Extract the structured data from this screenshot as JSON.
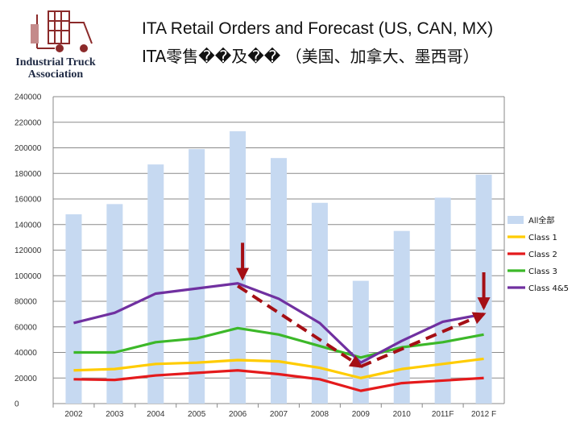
{
  "header": {
    "title": "ITA Retail Orders and Forecast (US, CAN, MX)",
    "subtitle": "ITA零售��及�� （美国、加拿大、墨西哥）",
    "logo_line1": "Industrial Truck",
    "logo_line2": "Association"
  },
  "chart_data": {
    "type": "bar",
    "categories": [
      "2002",
      "2003",
      "2004",
      "2005",
      "2006",
      "2007",
      "2008",
      "2009",
      "2010",
      "2011F",
      "2012 F"
    ],
    "ylim": [
      0,
      240000
    ],
    "yticks": [
      "0",
      "20000",
      "40000",
      "60000",
      "80000",
      "100000",
      "120000",
      "140000",
      "160000",
      "180000",
      "200000",
      "220000",
      "240000"
    ],
    "grid": true,
    "legend_position": "right",
    "series": [
      {
        "name": "All全部",
        "type": "bar",
        "color": "#c6d9f1",
        "values": [
          148000,
          156000,
          187000,
          199000,
          213000,
          192000,
          157000,
          96000,
          135000,
          161000,
          179000
        ]
      },
      {
        "name": "Class 1",
        "type": "line",
        "color": "#ffcc00",
        "values": [
          26000,
          27000,
          31000,
          32000,
          34000,
          33000,
          28000,
          20000,
          27000,
          31000,
          35000
        ]
      },
      {
        "name": "Class 2",
        "type": "line",
        "color": "#e41a1c",
        "values": [
          19000,
          18500,
          22000,
          24000,
          26000,
          23000,
          19000,
          10000,
          16000,
          18000,
          20000
        ]
      },
      {
        "name": "Class 3",
        "type": "line",
        "color": "#3cb829",
        "values": [
          40000,
          40000,
          48000,
          51000,
          59000,
          54000,
          45000,
          36000,
          44000,
          48000,
          54000
        ]
      },
      {
        "name": "Class 4&5",
        "type": "line",
        "color": "#7030a0",
        "values": [
          63000,
          71000,
          86000,
          90000,
          94000,
          82000,
          63000,
          32000,
          49000,
          64000,
          70000
        ]
      }
    ],
    "annotations": {
      "dashed_color": "#a50f15",
      "down_arrows_at": [
        "2006",
        "2012 F"
      ],
      "dashed_path": [
        {
          "from": [
            "2006",
            92000
          ],
          "to": [
            "2009",
            29000
          ]
        },
        {
          "from": [
            "2009",
            29000
          ],
          "to": [
            "2012 F",
            70000
          ]
        }
      ]
    }
  }
}
